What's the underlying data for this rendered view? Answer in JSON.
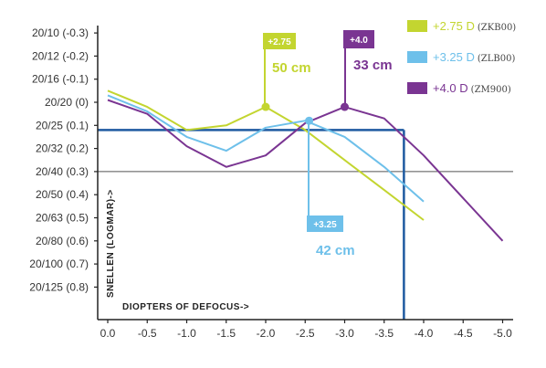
{
  "chart_data": {
    "type": "line",
    "xlabel": "DIOPTERS OF DEFOCUS->",
    "ylabel": "SNELLEN (LOGMAR)->",
    "x_ticks": [
      {
        "value": 0.0,
        "label": "0.0"
      },
      {
        "value": -0.5,
        "label": "-0.5"
      },
      {
        "value": -1.0,
        "label": "-1.0"
      },
      {
        "value": -1.5,
        "label": "-1.5"
      },
      {
        "value": -2.0,
        "label": "-2.0"
      },
      {
        "value": -2.5,
        "label": "-2.5"
      },
      {
        "value": -3.0,
        "label": "-3.0"
      },
      {
        "value": -3.5,
        "label": "-3.5"
      },
      {
        "value": -4.0,
        "label": "-4.0"
      },
      {
        "value": -4.5,
        "label": "-4.5"
      },
      {
        "value": -5.0,
        "label": "-5.0"
      }
    ],
    "y_ticks": [
      {
        "value": -0.3,
        "label": "20/10 (-0.3)"
      },
      {
        "value": -0.2,
        "label": "20/12 (-0.2)"
      },
      {
        "value": -0.1,
        "label": "20/16 (-0.1)"
      },
      {
        "value": 0.0,
        "label": "20/20 (0)"
      },
      {
        "value": 0.1,
        "label": "20/25 (0.1)"
      },
      {
        "value": 0.2,
        "label": "20/32 (0.2)"
      },
      {
        "value": 0.3,
        "label": "20/40 (0.3)"
      },
      {
        "value": 0.4,
        "label": "20/50 (0.4)"
      },
      {
        "value": 0.5,
        "label": "20/63 (0.5)"
      },
      {
        "value": 0.6,
        "label": "20/80 (0.6)"
      },
      {
        "value": 0.7,
        "label": "20/100 (0.7)"
      },
      {
        "value": 0.8,
        "label": "20/125 (0.8)"
      }
    ],
    "xlim": [
      0.0,
      -5.0
    ],
    "ylim": [
      -0.3,
      0.8
    ],
    "reference_line_y": 0.3,
    "reference_box": {
      "x": -3.75,
      "y": 0.12,
      "color": "#1e5aa0"
    },
    "series": [
      {
        "name": "+2.75 D",
        "code": "(ZKB00)",
        "color": "#c3d530",
        "x": [
          0.0,
          -0.5,
          -1.0,
          -1.5,
          -2.0,
          -2.5,
          -3.0,
          -3.5,
          -4.0
        ],
        "y": [
          -0.05,
          0.02,
          0.12,
          0.1,
          0.02,
          0.12,
          0.25,
          0.38,
          0.51
        ],
        "callout": {
          "tag": "+2.75",
          "distance": "50 cm",
          "x": -2.0,
          "y": 0.02
        }
      },
      {
        "name": "+3.25 D",
        "code": "(ZLB00)",
        "color": "#6ec0ea",
        "x": [
          0.0,
          -0.5,
          -1.0,
          -1.5,
          -2.0,
          -2.5,
          -3.0,
          -3.5,
          -4.0
        ],
        "y": [
          -0.03,
          0.04,
          0.15,
          0.21,
          0.11,
          0.08,
          0.15,
          0.28,
          0.43
        ],
        "callout": {
          "tag": "+3.25",
          "distance": "42 cm",
          "x": -2.55,
          "y": 0.08
        }
      },
      {
        "name": "+4.0 D",
        "code": "(ZM900)",
        "color": "#7a3592",
        "x": [
          0.0,
          -0.5,
          -1.0,
          -1.5,
          -2.0,
          -2.5,
          -3.0,
          -3.5,
          -4.0,
          -5.0
        ],
        "y": [
          -0.01,
          0.05,
          0.19,
          0.28,
          0.23,
          0.09,
          0.02,
          0.07,
          0.23,
          0.6
        ],
        "callout": {
          "tag": "+4.0",
          "distance": "33 cm",
          "x": -3.0,
          "y": 0.02
        }
      }
    ]
  }
}
